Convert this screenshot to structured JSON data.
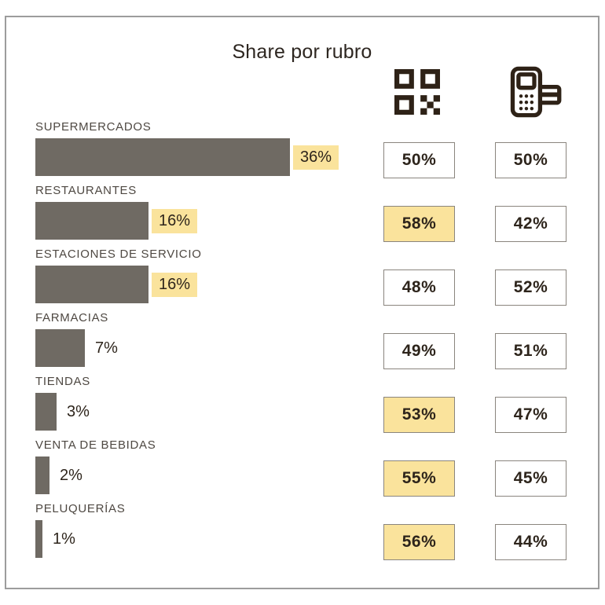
{
  "title": "Share por rubro",
  "icons": {
    "left_column": "qr-code-icon",
    "right_column": "pos-terminal-icon"
  },
  "colors": {
    "bar": "#6F6A63",
    "highlight": "#FAE39C",
    "ink": "#2D241B",
    "label": "#4E4842",
    "box_border": "#8A857E",
    "frame_border": "#9C9C9C",
    "icon_ink": "#2E2217"
  },
  "chart_data": {
    "type": "bar",
    "title": "Share por rubro",
    "unit": "%",
    "orientation": "horizontal",
    "columns": [
      "share_bar",
      "qr_share",
      "pos_share"
    ],
    "categories": [
      "SUPERMERCADOS",
      "RESTAURANTES",
      "ESTACIONES DE SERVICIO",
      "FARMACIAS",
      "TIENDAS",
      "VENTA DE BEBIDAS",
      "PELUQUERÍAS"
    ],
    "rows": [
      {
        "category": "SUPERMERCADOS",
        "share": 36,
        "share_label": "36%",
        "share_highlight": true,
        "qr": 50,
        "qr_label": "50%",
        "qr_highlight": false,
        "pos": 50,
        "pos_label": "50%",
        "pos_highlight": false
      },
      {
        "category": "RESTAURANTES",
        "share": 16,
        "share_label": "16%",
        "share_highlight": true,
        "qr": 58,
        "qr_label": "58%",
        "qr_highlight": true,
        "pos": 42,
        "pos_label": "42%",
        "pos_highlight": false
      },
      {
        "category": "ESTACIONES DE SERVICIO",
        "share": 16,
        "share_label": "16%",
        "share_highlight": true,
        "qr": 48,
        "qr_label": "48%",
        "qr_highlight": false,
        "pos": 52,
        "pos_label": "52%",
        "pos_highlight": false
      },
      {
        "category": "FARMACIAS",
        "share": 7,
        "share_label": "7%",
        "share_highlight": false,
        "qr": 49,
        "qr_label": "49%",
        "qr_highlight": false,
        "pos": 51,
        "pos_label": "51%",
        "pos_highlight": false
      },
      {
        "category": "TIENDAS",
        "share": 3,
        "share_label": "3%",
        "share_highlight": false,
        "qr": 53,
        "qr_label": "53%",
        "qr_highlight": true,
        "pos": 47,
        "pos_label": "47%",
        "pos_highlight": false
      },
      {
        "category": "VENTA DE BEBIDAS",
        "share": 2,
        "share_label": "2%",
        "share_highlight": false,
        "qr": 55,
        "qr_label": "55%",
        "qr_highlight": true,
        "pos": 45,
        "pos_label": "45%",
        "pos_highlight": false
      },
      {
        "category": "PELUQUERÍAS",
        "share": 1,
        "share_label": "1%",
        "share_highlight": false,
        "qr": 56,
        "qr_label": "56%",
        "qr_highlight": true,
        "pos": 44,
        "pos_label": "44%",
        "pos_highlight": false
      }
    ]
  }
}
